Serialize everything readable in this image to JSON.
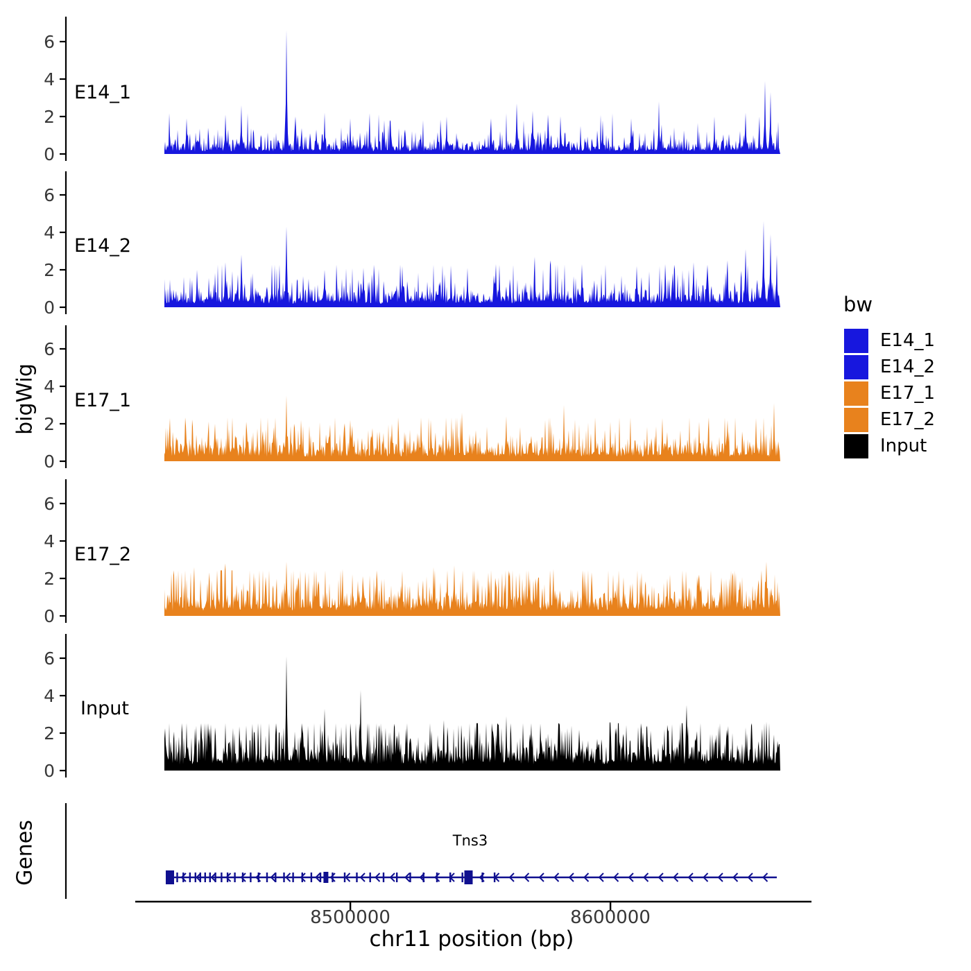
{
  "legend": {
    "title": "bw",
    "entries": [
      {
        "label": "E14_1",
        "color": "#1717de"
      },
      {
        "label": "E14_2",
        "color": "#1717de"
      },
      {
        "label": "E17_1",
        "color": "#e8821d"
      },
      {
        "label": "E17_2",
        "color": "#e8821d"
      },
      {
        "label": "Input",
        "color": "#000000"
      }
    ]
  },
  "chart_data": {
    "type": "area",
    "title": "",
    "xlabel": "chr11 position (bp)",
    "ylabel": "bigWig",
    "x_domain": [
      8428500,
      8665300
    ],
    "x_ticks": [
      8500000,
      8600000
    ],
    "x_tick_labels": [
      "8500000",
      "8600000"
    ],
    "y_ticks": [
      0,
      2,
      4,
      6
    ],
    "ylim": [
      0,
      7
    ],
    "grid": false,
    "legend_position": "right",
    "tracks": [
      {
        "name": "E14_1",
        "color": "#1717de",
        "baseline": 0.45,
        "peaks": [
          {
            "x": 8437000,
            "h": 1.9
          },
          {
            "x": 8452000,
            "h": 2.1
          },
          {
            "x": 8458000,
            "h": 2.6
          },
          {
            "x": 8475500,
            "h": 6.6
          },
          {
            "x": 8479000,
            "h": 2.0
          },
          {
            "x": 8490000,
            "h": 2.2
          },
          {
            "x": 8500000,
            "h": 1.9
          },
          {
            "x": 8513000,
            "h": 1.8
          },
          {
            "x": 8537000,
            "h": 2.0
          },
          {
            "x": 8554000,
            "h": 1.9
          },
          {
            "x": 8564000,
            "h": 2.7
          },
          {
            "x": 8570000,
            "h": 2.3
          },
          {
            "x": 8576000,
            "h": 2.1
          },
          {
            "x": 8597000,
            "h": 1.8
          },
          {
            "x": 8608000,
            "h": 1.9
          },
          {
            "x": 8618700,
            "h": 2.8
          },
          {
            "x": 8640000,
            "h": 2.0
          },
          {
            "x": 8652000,
            "h": 2.2
          },
          {
            "x": 8659500,
            "h": 3.9
          },
          {
            "x": 8661500,
            "h": 3.3
          }
        ]
      },
      {
        "name": "E14_2",
        "color": "#1717de",
        "baseline": 0.62,
        "peaks": [
          {
            "x": 8441000,
            "h": 2.0
          },
          {
            "x": 8452000,
            "h": 2.4
          },
          {
            "x": 8458000,
            "h": 2.8
          },
          {
            "x": 8475500,
            "h": 4.3
          },
          {
            "x": 8490000,
            "h": 2.0
          },
          {
            "x": 8505000,
            "h": 2.1
          },
          {
            "x": 8520000,
            "h": 2.2
          },
          {
            "x": 8545000,
            "h": 2.1
          },
          {
            "x": 8556000,
            "h": 2.3
          },
          {
            "x": 8571000,
            "h": 2.7
          },
          {
            "x": 8577000,
            "h": 2.5
          },
          {
            "x": 8589000,
            "h": 2.3
          },
          {
            "x": 8610000,
            "h": 2.2
          },
          {
            "x": 8621000,
            "h": 2.3
          },
          {
            "x": 8632000,
            "h": 2.4
          },
          {
            "x": 8645000,
            "h": 2.5
          },
          {
            "x": 8652000,
            "h": 3.1
          },
          {
            "x": 8659000,
            "h": 4.6
          },
          {
            "x": 8661500,
            "h": 3.9
          },
          {
            "x": 8664000,
            "h": 2.8
          }
        ]
      },
      {
        "name": "E17_1",
        "color": "#e8821d",
        "baseline": 0.72,
        "peaks": [
          {
            "x": 8430500,
            "h": 2.3
          },
          {
            "x": 8448000,
            "h": 2.0
          },
          {
            "x": 8460000,
            "h": 2.1
          },
          {
            "x": 8475500,
            "h": 3.5
          },
          {
            "x": 8481000,
            "h": 2.2
          },
          {
            "x": 8500000,
            "h": 2.2
          },
          {
            "x": 8516000,
            "h": 2.0
          },
          {
            "x": 8531000,
            "h": 2.2
          },
          {
            "x": 8543000,
            "h": 2.6
          },
          {
            "x": 8560000,
            "h": 2.4
          },
          {
            "x": 8575000,
            "h": 2.2
          },
          {
            "x": 8582000,
            "h": 3.0
          },
          {
            "x": 8600000,
            "h": 2.1
          },
          {
            "x": 8620000,
            "h": 2.3
          },
          {
            "x": 8634000,
            "h": 2.1
          },
          {
            "x": 8645000,
            "h": 2.2
          },
          {
            "x": 8656000,
            "h": 2.3
          },
          {
            "x": 8663000,
            "h": 3.1
          }
        ]
      },
      {
        "name": "E17_2",
        "color": "#e8821d",
        "baseline": 0.88,
        "peaks": [
          {
            "x": 8433000,
            "h": 2.2
          },
          {
            "x": 8440000,
            "h": 2.6
          },
          {
            "x": 8452000,
            "h": 2.8
          },
          {
            "x": 8463000,
            "h": 2.3
          },
          {
            "x": 8475500,
            "h": 2.9
          },
          {
            "x": 8487000,
            "h": 2.4
          },
          {
            "x": 8497000,
            "h": 2.5
          },
          {
            "x": 8510000,
            "h": 2.3
          },
          {
            "x": 8520000,
            "h": 2.4
          },
          {
            "x": 8532000,
            "h": 2.6
          },
          {
            "x": 8540000,
            "h": 2.7
          },
          {
            "x": 8553000,
            "h": 2.3
          },
          {
            "x": 8565000,
            "h": 2.3
          },
          {
            "x": 8578000,
            "h": 2.5
          },
          {
            "x": 8590000,
            "h": 2.4
          },
          {
            "x": 8601000,
            "h": 2.2
          },
          {
            "x": 8612000,
            "h": 2.3
          },
          {
            "x": 8623000,
            "h": 2.2
          },
          {
            "x": 8634000,
            "h": 2.2
          },
          {
            "x": 8647000,
            "h": 2.3
          },
          {
            "x": 8660000,
            "h": 2.9
          }
        ]
      },
      {
        "name": "Input",
        "color": "#000000",
        "baseline": 1.05,
        "peaks": [
          {
            "x": 8437000,
            "h": 2.5
          },
          {
            "x": 8448000,
            "h": 2.3
          },
          {
            "x": 8460000,
            "h": 2.4
          },
          {
            "x": 8475500,
            "h": 6.1
          },
          {
            "x": 8490000,
            "h": 3.3
          },
          {
            "x": 8504000,
            "h": 4.3
          },
          {
            "x": 8517000,
            "h": 2.5
          },
          {
            "x": 8536000,
            "h": 2.7
          },
          {
            "x": 8548000,
            "h": 2.4
          },
          {
            "x": 8560000,
            "h": 2.9
          },
          {
            "x": 8573000,
            "h": 2.5
          },
          {
            "x": 8585000,
            "h": 2.4
          },
          {
            "x": 8600000,
            "h": 2.6
          },
          {
            "x": 8614000,
            "h": 2.4
          },
          {
            "x": 8629300,
            "h": 3.5
          },
          {
            "x": 8642000,
            "h": 2.5
          },
          {
            "x": 8654000,
            "h": 2.4
          },
          {
            "x": 8660000,
            "h": 2.6
          }
        ]
      }
    ],
    "genes_track": {
      "label": "Genes",
      "gene_name": "Tns3",
      "strand": "-",
      "color": "#0f0f8f",
      "start": 8430500,
      "end": 8664000,
      "exon_fractions_small": [
        0.012,
        0.022,
        0.033,
        0.042,
        0.05,
        0.058,
        0.066,
        0.075,
        0.085,
        0.095,
        0.107,
        0.12,
        0.133,
        0.146,
        0.16,
        0.174,
        0.188,
        0.203,
        0.218,
        0.233,
        0.248,
        0.268,
        0.288,
        0.308,
        0.33,
        0.352,
        0.374,
        0.396,
        0.418,
        0.44,
        0.462,
        0.482,
        0.515,
        0.535
      ],
      "exon_fractions_medium": [
        0.257
      ],
      "exon_fractions_large": [
        0.0,
        0.492
      ]
    }
  }
}
